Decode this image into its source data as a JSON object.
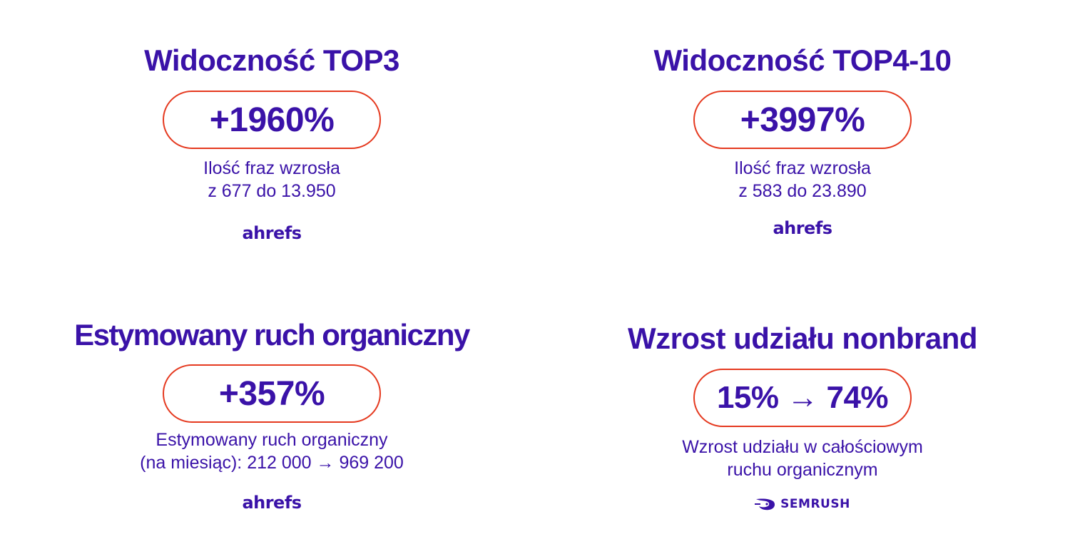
{
  "colors": {
    "text": "#3a12a8",
    "pill_border": "#e5391f",
    "background": "#ffffff"
  },
  "blocks": [
    {
      "title": "Widoczność TOP3",
      "value": "+1960%",
      "desc_line1": "Ilość fraz wzrosła",
      "desc_line2": "z 677 do 13.950",
      "source": "ahrefs"
    },
    {
      "title": "Widoczność TOP4-10",
      "value": "+3997%",
      "desc_line1": "Ilość fraz wzrosła",
      "desc_line2": "z 583 do 23.890",
      "source": "ahrefs"
    },
    {
      "title": "Estymowany ruch organiczny",
      "value": "+357%",
      "desc_line1": "Estymowany ruch organiczny",
      "desc_line2": "(na miesiąc): 212 000 → 969 200",
      "source": "ahrefs"
    },
    {
      "title": "Wzrost udziału nonbrand",
      "value": "15% → 74%",
      "desc_line1": "Wzrost udziału w całościowym",
      "desc_line2": "ruchu organicznym",
      "source": "SEMRUSH",
      "source_icon": "semrush-flame-icon"
    }
  ]
}
